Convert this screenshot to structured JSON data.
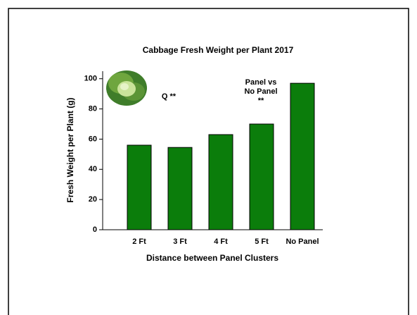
{
  "chart_data": {
    "type": "bar",
    "title": "Cabbage Fresh Weight per Plant 2017",
    "x_label": "Distance between Panel Clusters",
    "y_label": "Fresh Weight per Plant (g)",
    "categories": [
      "2 Ft",
      "3 Ft",
      "4 Ft",
      "5 Ft",
      "No Panel"
    ],
    "values": [
      56,
      54.5,
      63,
      70,
      97
    ],
    "color": "#0b7d0b",
    "ylim": [
      0,
      105
    ],
    "yticks": [
      0,
      20,
      40,
      60,
      80,
      100
    ],
    "grid": false,
    "annotations": [
      {
        "lines": [
          "Q **"
        ]
      },
      {
        "lines": [
          "Panel vs",
          "No Panel",
          "**"
        ]
      }
    ]
  }
}
